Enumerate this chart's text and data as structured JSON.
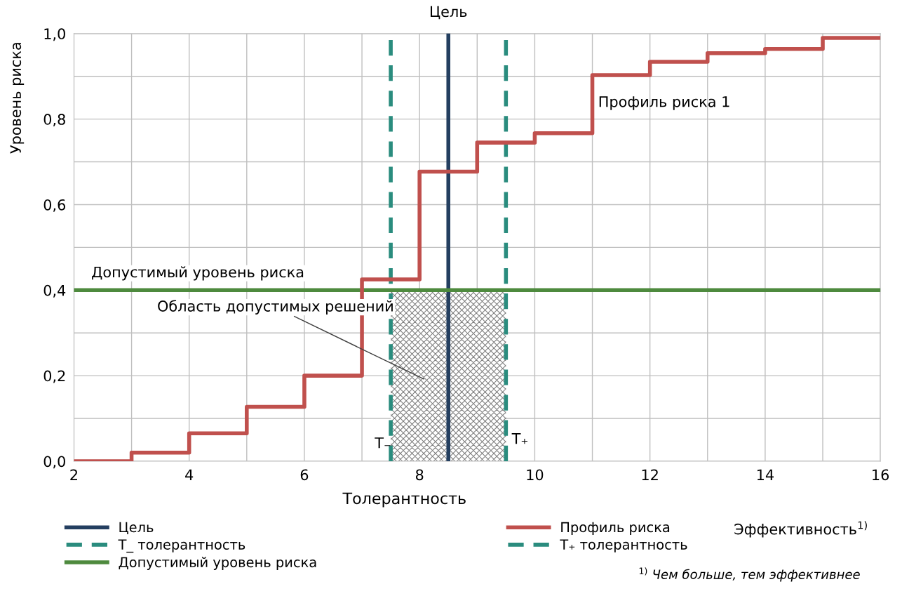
{
  "chart_data": {
    "type": "step",
    "xlabel": "Эффективность$^{1)}$",
    "ylabel": "Уровень риска",
    "x": [
      2,
      3,
      4,
      5,
      6,
      7,
      8,
      9,
      10,
      11,
      12,
      13,
      14,
      15,
      16
    ],
    "series": [
      {
        "name": "Профиль риска",
        "color": "#c0504d",
        "values": [
          0.0,
          0.02,
          0.065,
          0.127,
          0.2,
          0.425,
          0.677,
          0.745,
          0.767,
          0.903,
          0.934,
          0.954,
          0.964,
          0.99,
          0.99
        ]
      }
    ],
    "xlim": [
      2,
      16
    ],
    "ylim": [
      0,
      1
    ],
    "xticks": [
      2,
      {
        "value": 3,
        "label": null
      },
      4,
      {
        "value": 5,
        "label": null
      },
      6,
      {
        "value": 7,
        "label": null
      },
      8,
      {
        "value": 9,
        "label": null
      },
      10,
      {
        "value": 11,
        "label": null
      },
      12,
      {
        "value": 13,
        "label": null
      },
      14,
      {
        "value": 15,
        "label": null
      },
      16
    ],
    "yticks": [
      {
        "value": 0,
        "label": "0,0"
      },
      {
        "value": 0.1,
        "label": null
      },
      {
        "value": 0.2,
        "label": "0,2"
      },
      {
        "value": 0.3,
        "label": null
      },
      {
        "value": 0.4,
        "label": "0,4"
      },
      {
        "value": 0.5,
        "label": null
      },
      {
        "value": 0.6,
        "label": "0,6"
      },
      {
        "value": 0.7,
        "label": null
      },
      {
        "value": 0.8,
        "label": "0,8"
      },
      {
        "value": 0.9,
        "label": null
      },
      {
        "value": 1.0,
        "label": "1,0"
      }
    ],
    "ref_lines": [
      {
        "axis": "x",
        "value": 8.5,
        "label": "Цель",
        "color": "#243f60",
        "line_style": "solid"
      },
      {
        "axis": "x",
        "value": 7.5,
        "label": "T_ толерантность",
        "color": "#2a8c7e",
        "line_style": "dashed"
      },
      {
        "axis": "x",
        "value": 9.5,
        "label": "T₊ толерантность",
        "color": "#2a8c7e",
        "line_style": "dashed"
      },
      {
        "axis": "y",
        "value": 0.4,
        "label": "Допустимый уровень риска",
        "color": "#4e8a3e",
        "line_style": "solid"
      }
    ],
    "bands": [
      {
        "axis": "x",
        "from": 7.5,
        "to": 9.5,
        "color": "#7f7f7f"
      }
    ],
    "annotations": [
      {
        "text": "Цель",
        "x": 8.5,
        "y": 1.0
      },
      {
        "text": "Допустимый уровень риска",
        "x": 2.3,
        "y": 0.4
      },
      {
        "text": "Профиль риска 1",
        "x": 11.1,
        "y": 0.9
      },
      {
        "text": "T₊",
        "x": 9.5,
        "y": 0.0
      },
      "Область допустимых решений",
      "T₋",
      "Толерантность",
      "$^{1)}$ Чем больше, тем эффективнее"
    ],
    "grid": true,
    "legend": "bottom",
    "line_style": "solid",
    "marker": "none"
  }
}
